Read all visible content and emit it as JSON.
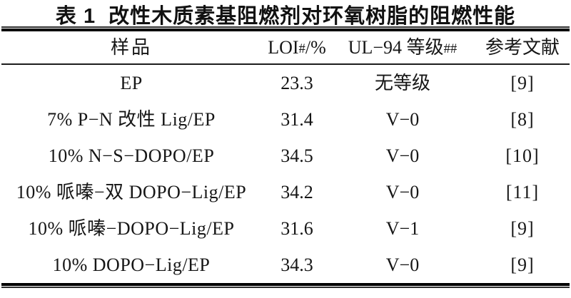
{
  "table": {
    "title_prefix": "表 1",
    "title_text": "改性木质素基阻燃剂对环氧树脂的阻燃性能",
    "columns": {
      "sample": "样品",
      "loi_label": "LOI",
      "loi_marker": "#",
      "loi_unit": "/%",
      "ul94_label": "UL−94 等级",
      "ul94_marker": "##",
      "reference": "参考文献"
    },
    "rows": [
      [
        "EP",
        "23.3",
        "无等级",
        "[9]"
      ],
      [
        "7% P−N 改性 Lig/EP",
        "31.4",
        "V−0",
        "[8]"
      ],
      [
        "10% N−S−DOPO/EP",
        "34.5",
        "V−0",
        "[10]"
      ],
      [
        "10% 哌嗪−双 DOPO−Lig/EP",
        "34.2",
        "V−0",
        "[11]"
      ],
      [
        "10% 哌嗪−DOPO−Lig/EP",
        "31.6",
        "V−1",
        "[9]"
      ],
      [
        "10% DOPO−Lig/EP",
        "34.3",
        "V−0",
        "[9]"
      ]
    ],
    "colors": {
      "text": "#161616",
      "rule": "#000000",
      "background": "#ffffff"
    }
  }
}
